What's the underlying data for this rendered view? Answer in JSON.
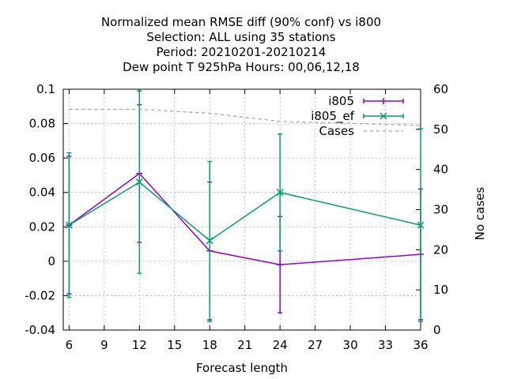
{
  "chart_data": {
    "type": "line",
    "title_lines": [
      "Normalized mean RMSE diff (90% conf) vs i800",
      "Selection: ALL using    35 stations",
      "Period: 20210201-20210214",
      "Dew point T 925hPa   Hours:  00,06,12,18"
    ],
    "xlabel": "Forecast length",
    "y2label": "No cases",
    "xlim": [
      5.5,
      36
    ],
    "ylim": [
      -0.04,
      0.1
    ],
    "y2lim": [
      0,
      60
    ],
    "xticks": [
      6,
      9,
      12,
      15,
      18,
      21,
      24,
      27,
      30,
      33,
      36
    ],
    "yticks": [
      -0.04,
      -0.02,
      0,
      0.02,
      0.04,
      0.06,
      0.08,
      0.1
    ],
    "yticklabels": [
      "-0.04",
      "-0.02",
      "0",
      "0.02",
      "0.04",
      "0.06",
      "0.08",
      "0.1"
    ],
    "y2ticks": [
      0,
      10,
      20,
      30,
      40,
      50,
      60
    ],
    "legend_position": "top-right",
    "series": [
      {
        "name": "i805",
        "color": "#9400d3",
        "marker": "plus",
        "x": [
          6,
          12,
          18,
          24,
          36
        ],
        "y": [
          0.021,
          0.051,
          0.006,
          -0.002,
          0.004
        ],
        "err_low": [
          -0.019,
          0.011,
          -0.034,
          -0.03,
          -0.034
        ],
        "err_high": [
          0.061,
          0.091,
          0.046,
          0.026,
          0.042
        ]
      },
      {
        "name": "i805_ef",
        "color": "#009e73",
        "marker": "cross",
        "x": [
          6,
          12,
          18,
          24,
          36
        ],
        "y": [
          0.021,
          0.046,
          0.012,
          0.04,
          0.021
        ],
        "err_low": [
          -0.021,
          -0.007,
          -0.035,
          0.006,
          -0.035
        ],
        "err_high": [
          0.063,
          0.099,
          0.058,
          0.074,
          0.077
        ]
      },
      {
        "name": "Cases",
        "color": "#a0a0a0",
        "style": "dashed",
        "axis": "y2",
        "x": [
          6,
          12,
          18,
          24,
          36
        ],
        "y": [
          55,
          55,
          54,
          52,
          51
        ]
      }
    ]
  }
}
